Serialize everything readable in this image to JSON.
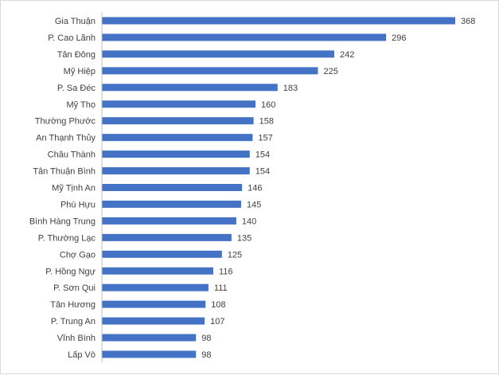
{
  "chart_data": {
    "type": "bar",
    "orientation": "horizontal",
    "title": "",
    "xlabel": "",
    "ylabel": "",
    "grid": false,
    "legend": "none",
    "bar_color": "#4472C4",
    "axis_color": "#BFBFBF",
    "text_color": "#404040",
    "xlim": [
      0,
      368
    ],
    "categories": [
      "Gia Thuận",
      "P. Cao Lãnh",
      "Tân Đông",
      "Mỹ Hiệp",
      "P. Sa Đéc",
      "Mỹ Thọ",
      "Thường Phước",
      "An Thạnh Thủy",
      "Châu Thành",
      "Tân Thuận Bình",
      "Mỹ Tịnh An",
      "Phú Hựu",
      "Bình Hàng Trung",
      "P. Thường Lạc",
      "Chợ Gạo",
      "P. Hồng Ngự",
      "P. Sơn Qui",
      "Tân Hương",
      "P. Trung An",
      "Vĩnh Bình",
      "Lấp Vò"
    ],
    "values": [
      368,
      296,
      242,
      225,
      183,
      160,
      158,
      157,
      154,
      154,
      146,
      145,
      140,
      135,
      125,
      116,
      111,
      108,
      107,
      98,
      98
    ]
  }
}
